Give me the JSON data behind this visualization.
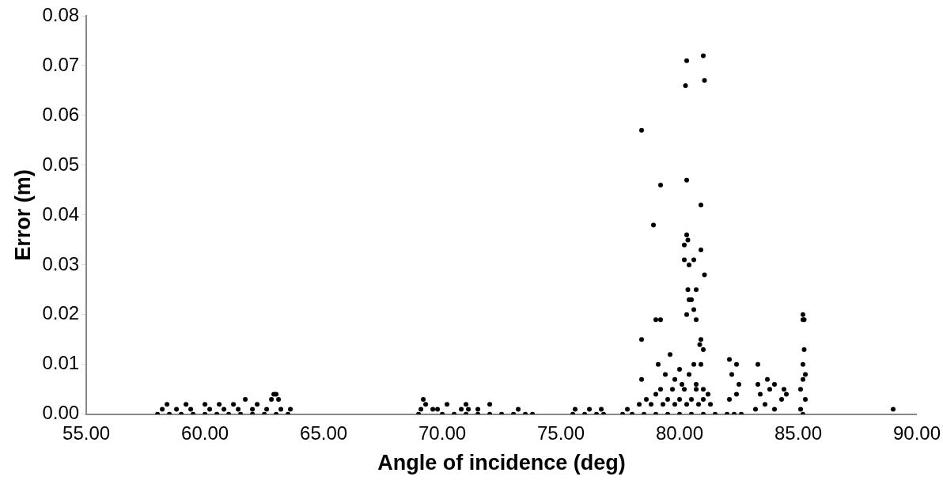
{
  "chart_data": {
    "type": "scatter",
    "xlabel": "Angle of incidence (deg)",
    "ylabel": "Error (m)",
    "xlim": [
      55,
      90
    ],
    "xticks": [
      {
        "value": 55,
        "label": "55.00"
      },
      {
        "value": 60,
        "label": "60.00"
      },
      {
        "value": 65,
        "label": "65.00"
      },
      {
        "value": 70,
        "label": "70.00"
      },
      {
        "value": 75,
        "label": "75.00"
      },
      {
        "value": 80,
        "label": "80.00"
      },
      {
        "value": 85,
        "label": "85.00"
      },
      {
        "value": 90,
        "label": "90.00"
      }
    ],
    "ylim": [
      0,
      0.08
    ],
    "yticks": [
      {
        "value": 0,
        "label": "0.00"
      },
      {
        "value": 0.01,
        "label": "0.01"
      },
      {
        "value": 0.02,
        "label": "0.02"
      },
      {
        "value": 0.03,
        "label": "0.03"
      },
      {
        "value": 0.04,
        "label": "0.04"
      },
      {
        "value": 0.05,
        "label": "0.05"
      },
      {
        "value": 0.06,
        "label": "0.06"
      },
      {
        "value": 0.07,
        "label": "0.07"
      },
      {
        "value": 0.08,
        "label": "0.08"
      }
    ],
    "grid": false,
    "marker": "circle",
    "series": [
      {
        "color": "#000000",
        "x": [
          58.0,
          58.5,
          59.0,
          59.5,
          60.0,
          60.5,
          61.0,
          61.5,
          62.0,
          62.5,
          63.0,
          63.5,
          58.2,
          58.8,
          59.4,
          60.2,
          60.8,
          61.4,
          62.0,
          62.6,
          63.2,
          63.6,
          58.4,
          59.2,
          60.0,
          60.6,
          61.2,
          61.7,
          62.2,
          62.8,
          63.0,
          62.9,
          63.1,
          69.0,
          69.1,
          69.3,
          69.6,
          70.0,
          70.5,
          71.0,
          71.1,
          71.5,
          72.0,
          72.5,
          73.0,
          73.5,
          73.8,
          69.2,
          70.2,
          71.0,
          72.0,
          73.2,
          69.8,
          70.8,
          71.5,
          75.5,
          76.0,
          76.5,
          76.8,
          75.6,
          76.2,
          76.7,
          77.6,
          78.0,
          78.5,
          79.0,
          79.5,
          80.0,
          80.5,
          81.0,
          81.5,
          77.8,
          78.3,
          78.8,
          79.3,
          79.8,
          80.3,
          80.8,
          81.3,
          78.6,
          79.0,
          79.5,
          80.0,
          80.5,
          81.0,
          79.2,
          79.7,
          80.2,
          80.7,
          81.2,
          79.4,
          79.8,
          80.1,
          80.4,
          80.7,
          81.0,
          79.1,
          79.6,
          80.0,
          80.6,
          80.9,
          78.4,
          79.2,
          80.3,
          80.25,
          81.0,
          81.05,
          78.4,
          79.2,
          78.9,
          80.3,
          80.9,
          80.2,
          80.3,
          80.35,
          80.9,
          80.6,
          80.4,
          80.2,
          81.05,
          80.35,
          80.7,
          80.4,
          80.5,
          80.3,
          80.6,
          80.7,
          79.0,
          78.4,
          80.9,
          80.85,
          81.0,
          82.0,
          82.3,
          82.6,
          82.1,
          82.4,
          82.5,
          82.2,
          82.1,
          82.4,
          83.2,
          83.6,
          84.0,
          83.4,
          83.8,
          84.3,
          83.3,
          83.7,
          84.0,
          84.4,
          83.3,
          84.5,
          85.1,
          85.2,
          85.3,
          85.1,
          85.2,
          85.3,
          85.2,
          85.25,
          85.2,
          85.25,
          85.2,
          89.0
        ],
        "values": [
          0,
          0,
          0,
          0,
          0,
          0,
          0,
          0,
          0,
          0,
          0,
          0,
          0.001,
          0.001,
          0.001,
          0.001,
          0.001,
          0.001,
          0.001,
          0.001,
          0.001,
          0.001,
          0.002,
          0.002,
          0.002,
          0.002,
          0.002,
          0.003,
          0.002,
          0.003,
          0.004,
          0.004,
          0.003,
          0,
          0.001,
          0.002,
          0.001,
          0,
          0,
          0,
          0.001,
          0,
          0,
          0,
          0,
          0,
          0,
          0.003,
          0.002,
          0.002,
          0.002,
          0.001,
          0.001,
          0.001,
          0.001,
          0,
          0,
          0,
          0,
          0.001,
          0.001,
          0.001,
          0,
          0,
          0,
          0,
          0,
          0,
          0,
          0,
          0,
          0.001,
          0.002,
          0.002,
          0.002,
          0.002,
          0.002,
          0.002,
          0.002,
          0.003,
          0.004,
          0.003,
          0.003,
          0.003,
          0.003,
          0.005,
          0.005,
          0.005,
          0.005,
          0.004,
          0.008,
          0.007,
          0.006,
          0.008,
          0.006,
          0.005,
          0.01,
          0.012,
          0.009,
          0.01,
          0.01,
          0.057,
          0.046,
          0.071,
          0.066,
          0.072,
          0.067,
          0.015,
          0.019,
          0.038,
          0.047,
          0.042,
          0.034,
          0.036,
          0.035,
          0.033,
          0.031,
          0.03,
          0.031,
          0.028,
          0.025,
          0.025,
          0.023,
          0.023,
          0.02,
          0.021,
          0.019,
          0.019,
          0.007,
          0.015,
          0.014,
          0.013,
          0,
          0,
          0,
          0.003,
          0.004,
          0.006,
          0.008,
          0.011,
          0.01,
          0.001,
          0.002,
          0.001,
          0.004,
          0.005,
          0.003,
          0.006,
          0.007,
          0.006,
          0.005,
          0.01,
          0.004,
          0.001,
          0,
          0.003,
          0.005,
          0.007,
          0.008,
          0.02,
          0.019,
          0.019,
          0.013,
          0.01,
          0.001
        ]
      }
    ]
  }
}
